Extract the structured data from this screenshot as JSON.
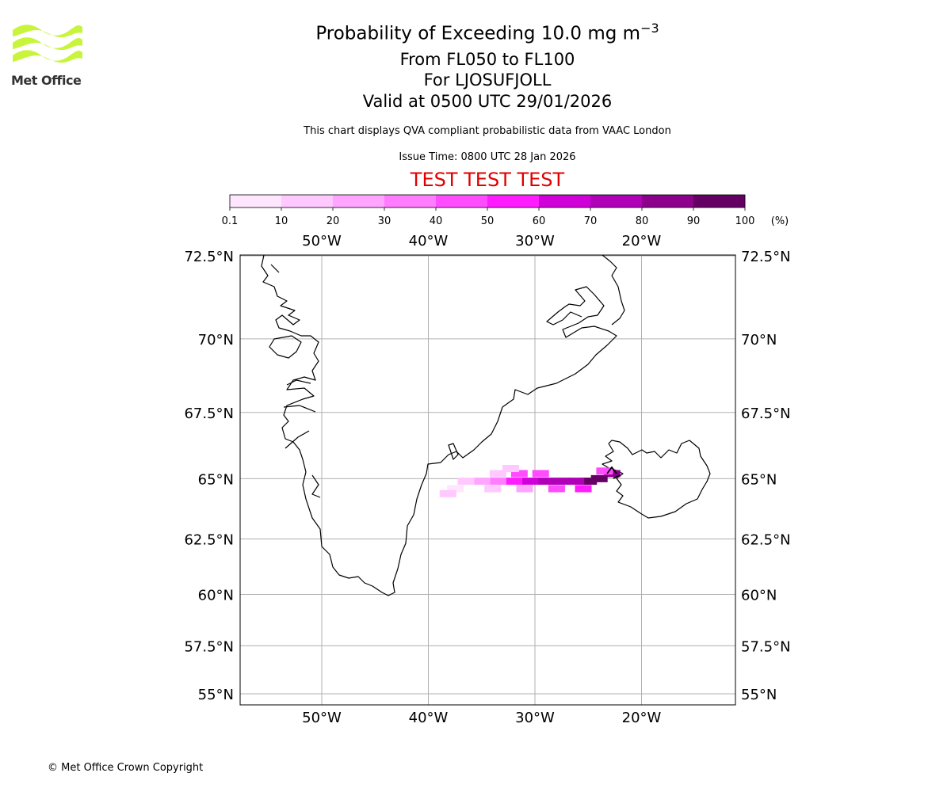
{
  "logo": {
    "text": "Met Office",
    "color": "#c8f53c"
  },
  "header": {
    "title_main": "Probability of Exceeding 10.0 mg m",
    "title_sup": "−3",
    "flight_levels": "From FL050 to FL100",
    "location": "For LJOSUFJOLL",
    "valid_time": "Valid at 0500 UTC 29/01/2026",
    "disclaimer": "This chart displays QVA compliant probabilistic data from VAAC London",
    "issue_time": "Issue Time: 0800 UTC 28 Jan 2026",
    "test_banner": "TEST TEST TEST",
    "test_color": "#e00000"
  },
  "colorbar": {
    "unit_label": "(%)",
    "ticks": [
      "0.1",
      "10",
      "20",
      "30",
      "40",
      "50",
      "60",
      "70",
      "80",
      "90",
      "100"
    ],
    "colors": [
      "#ffe6ff",
      "#ffc8ff",
      "#ffa4ff",
      "#ff7cff",
      "#ff4cff",
      "#ff1cff",
      "#d000d8",
      "#b000b8",
      "#8c008c",
      "#640064"
    ]
  },
  "map": {
    "lon_labels": [
      "50°W",
      "40°W",
      "30°W",
      "20°W"
    ],
    "lon_values": [
      -50,
      -40,
      -30,
      -20
    ],
    "lat_labels": [
      "72.5°N",
      "70°N",
      "67.5°N",
      "65°N",
      "62.5°N",
      "60°N",
      "57.5°N",
      "55°N"
    ],
    "lat_values": [
      72.5,
      70,
      67.5,
      65,
      62.5,
      60,
      57.5,
      55
    ],
    "grid": true,
    "plume": [
      {
        "lon": -22.8,
        "lat": 65.2,
        "prob": 88
      },
      {
        "lon": -24.0,
        "lat": 65.0,
        "prob": 95
      },
      {
        "lon": -25.0,
        "lat": 64.9,
        "prob": 92
      },
      {
        "lon": -26.2,
        "lat": 64.9,
        "prob": 75
      },
      {
        "lon": -27.5,
        "lat": 64.9,
        "prob": 72
      },
      {
        "lon": -29.0,
        "lat": 64.9,
        "prob": 70
      },
      {
        "lon": -30.5,
        "lat": 64.9,
        "prob": 62
      },
      {
        "lon": -32.0,
        "lat": 64.9,
        "prob": 55
      },
      {
        "lon": -33.5,
        "lat": 64.9,
        "prob": 35
      },
      {
        "lon": -35.0,
        "lat": 64.9,
        "prob": 20
      },
      {
        "lon": -36.5,
        "lat": 64.9,
        "prob": 15
      },
      {
        "lon": -25.5,
        "lat": 64.6,
        "prob": 58
      },
      {
        "lon": -28.0,
        "lat": 64.6,
        "prob": 48
      },
      {
        "lon": -31.0,
        "lat": 64.6,
        "prob": 22
      },
      {
        "lon": -34.0,
        "lat": 64.6,
        "prob": 15
      },
      {
        "lon": -37.5,
        "lat": 64.6,
        "prob": 8
      },
      {
        "lon": -29.5,
        "lat": 65.2,
        "prob": 45
      },
      {
        "lon": -31.5,
        "lat": 65.2,
        "prob": 40
      },
      {
        "lon": -33.5,
        "lat": 65.2,
        "prob": 12
      },
      {
        "lon": -32.3,
        "lat": 65.4,
        "prob": 10
      },
      {
        "lon": -23.5,
        "lat": 65.3,
        "prob": 40
      },
      {
        "lon": -38.2,
        "lat": 64.4,
        "prob": 12
      }
    ]
  },
  "footer": {
    "copyright": "© Met Office Crown Copyright"
  }
}
